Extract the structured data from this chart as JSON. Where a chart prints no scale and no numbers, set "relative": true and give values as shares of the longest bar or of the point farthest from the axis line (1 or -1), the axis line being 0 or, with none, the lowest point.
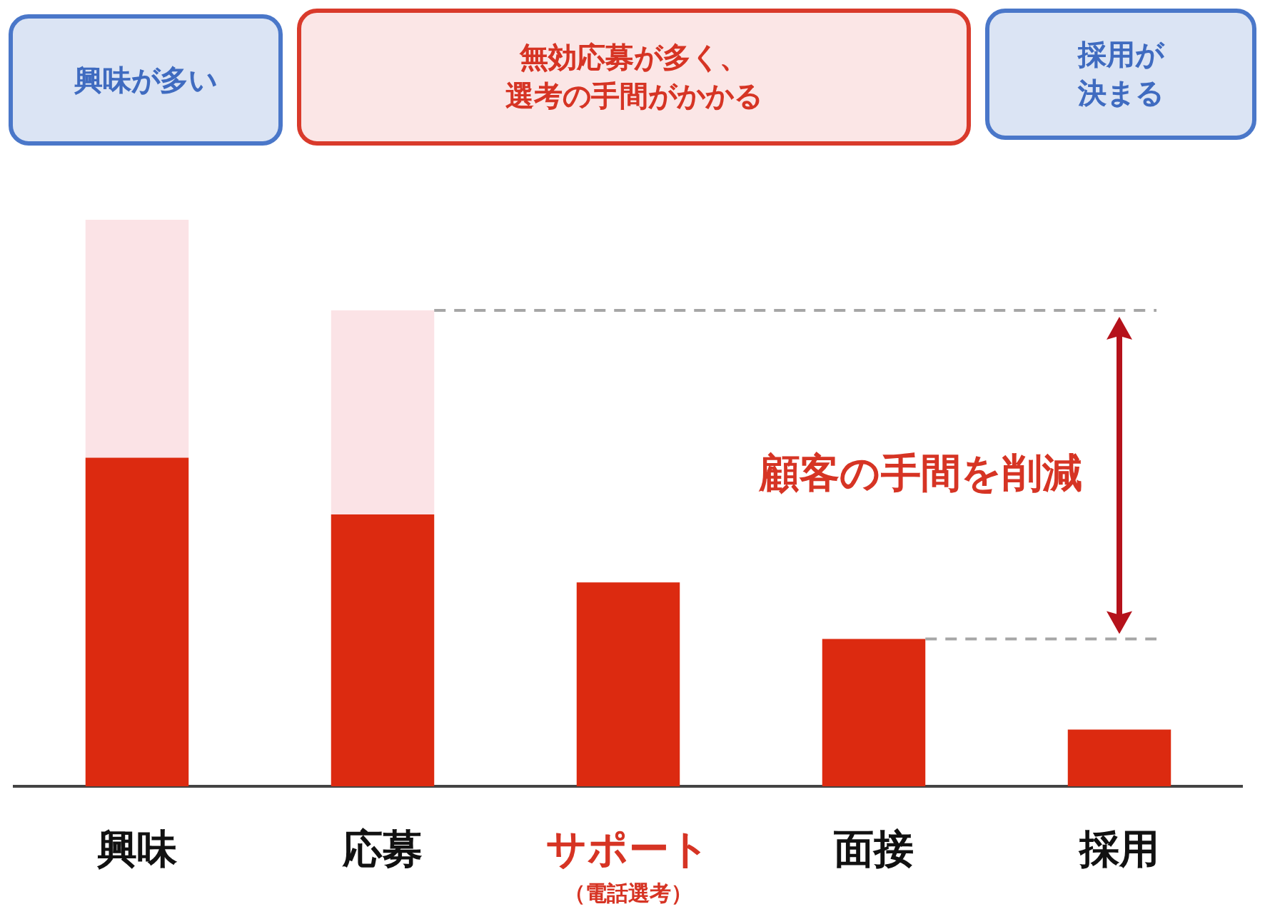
{
  "chart_data": {
    "type": "bar",
    "relative": true,
    "stacked": true,
    "grid": false,
    "legend": false,
    "categories": [
      "興味",
      "応募",
      "サポート（電話選考）",
      "面接",
      "採用"
    ],
    "series": [
      {
        "color": "#dc2a10",
        "values": [
          0.58,
          0.48,
          0.36,
          0.26,
          0.1
        ]
      },
      {
        "color": "#fbe3e6",
        "values": [
          0.42,
          0.36,
          null,
          null,
          null
        ]
      }
    ],
    "ref_lines": [
      {
        "axis": "y",
        "value": 0.84,
        "color": "#a6a6a6",
        "line_style": "dashed"
      },
      {
        "axis": "y",
        "value": 0.26,
        "color": "#a6a6a6",
        "line_style": "dashed"
      }
    ],
    "annotations": [
      "興味が多い",
      "無効応募が多く、選考の手間がかかる",
      "採用が決まる",
      "顧客の手間を削減"
    ]
  }
}
